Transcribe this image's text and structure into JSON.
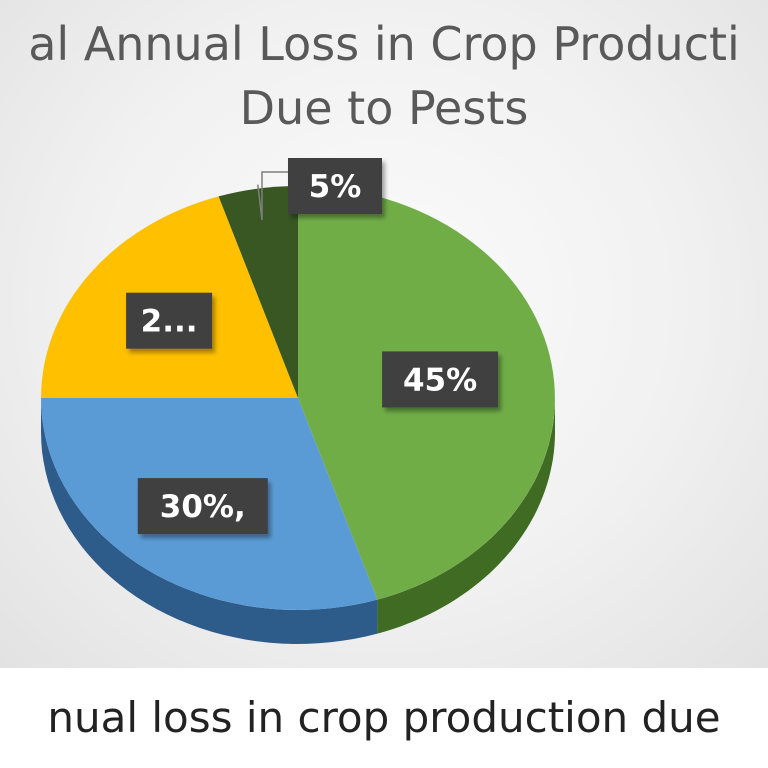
{
  "chart_data": {
    "type": "pie",
    "title_lines": [
      "al Annual Loss in Crop Producti",
      "Due to Pests"
    ],
    "slices": [
      {
        "label": "45%",
        "value": 45,
        "color": "#70ad47",
        "side_color": "#3f6b23"
      },
      {
        "label": "30%,",
        "value": 30,
        "color": "#5b9bd5",
        "side_color": "#2e5c8a"
      },
      {
        "label": "2...",
        "value": 20,
        "color": "#ffc000",
        "side_color": "#b38600"
      },
      {
        "label": "5%",
        "value": 5,
        "color": "#385723",
        "side_color": "#22361a"
      }
    ],
    "three_d": true,
    "data_label_style": "dark-boxes"
  },
  "caption": "nual loss in crop production due"
}
